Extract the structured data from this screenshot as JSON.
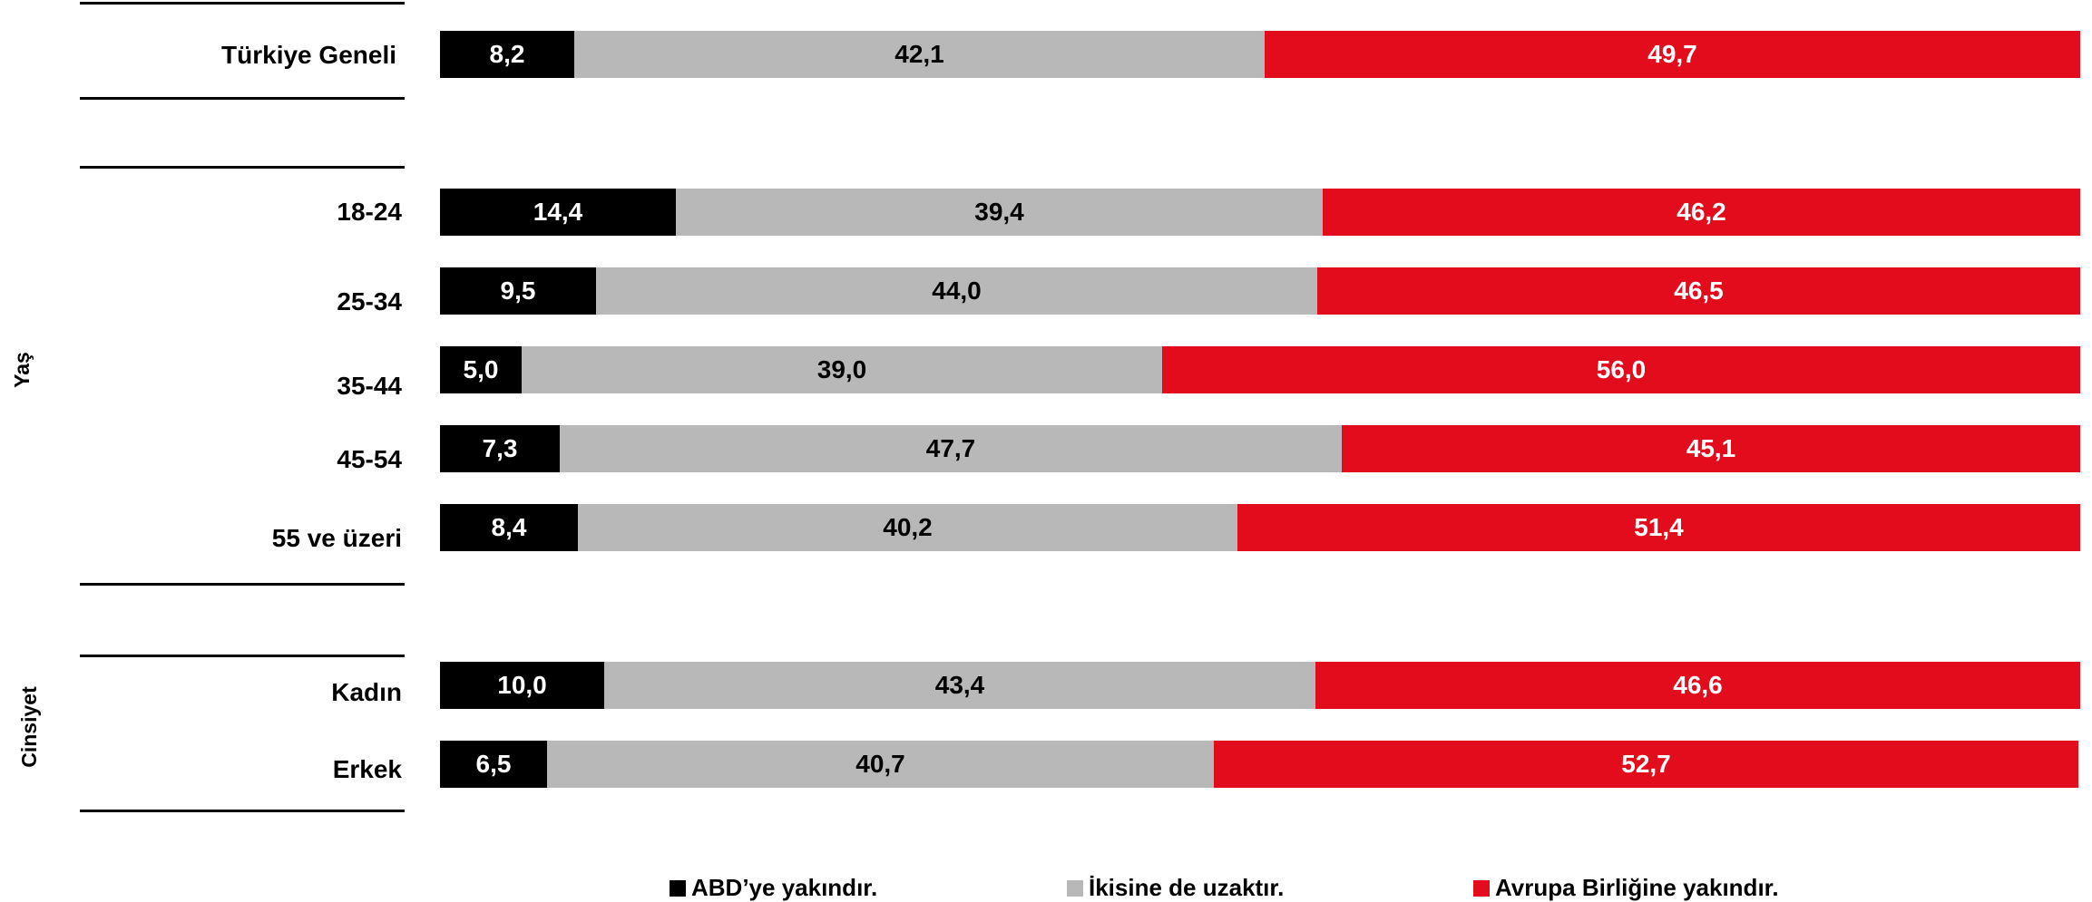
{
  "chart_data": {
    "type": "bar",
    "orientation": "horizontal",
    "stacked": true,
    "percent_scale": 100,
    "categories": [
      "Türkiye Geneli",
      "18-24",
      "25-34",
      "35-44",
      "45-54",
      "55 ve üzeri",
      "Kadın",
      "Erkek"
    ],
    "groups": [
      {
        "name": "",
        "categories": [
          "Türkiye Geneli"
        ]
      },
      {
        "name": "Yaş",
        "categories": [
          "18-24",
          "25-34",
          "35-44",
          "45-54",
          "55 ve üzeri"
        ]
      },
      {
        "name": "Cinsiyet",
        "categories": [
          "Kadın",
          "Erkek"
        ]
      }
    ],
    "series": [
      {
        "name": "ABD’ye yakındır.",
        "color": "#000000",
        "text_color": "#ffffff",
        "values": [
          8.2,
          14.4,
          9.5,
          5.0,
          7.3,
          8.4,
          10.0,
          6.5
        ],
        "labels": [
          "8,2",
          "14,4",
          "9,5",
          "5,0",
          "7,3",
          "8,4",
          "10,0",
          "6,5"
        ]
      },
      {
        "name": "İkisine de uzaktır.",
        "color": "#b8b8b8",
        "text_color": "#000000",
        "values": [
          42.1,
          39.4,
          44.0,
          39.0,
          47.7,
          40.2,
          43.4,
          40.7
        ],
        "labels": [
          "42,1",
          "39,4",
          "44,0",
          "39,0",
          "47,7",
          "40,2",
          "43,4",
          "40,7"
        ]
      },
      {
        "name": "Avrupa Birliğine yakındır.",
        "color": "#e30c1c",
        "text_color": "#ffffff",
        "values": [
          49.7,
          46.2,
          46.5,
          56.0,
          45.1,
          51.4,
          46.6,
          52.7
        ],
        "labels": [
          "49,7",
          "46,2",
          "46,5",
          "56,0",
          "45,1",
          "51,4",
          "46,6",
          "52,7"
        ]
      }
    ],
    "legend_position": "bottom",
    "grid": false
  }
}
